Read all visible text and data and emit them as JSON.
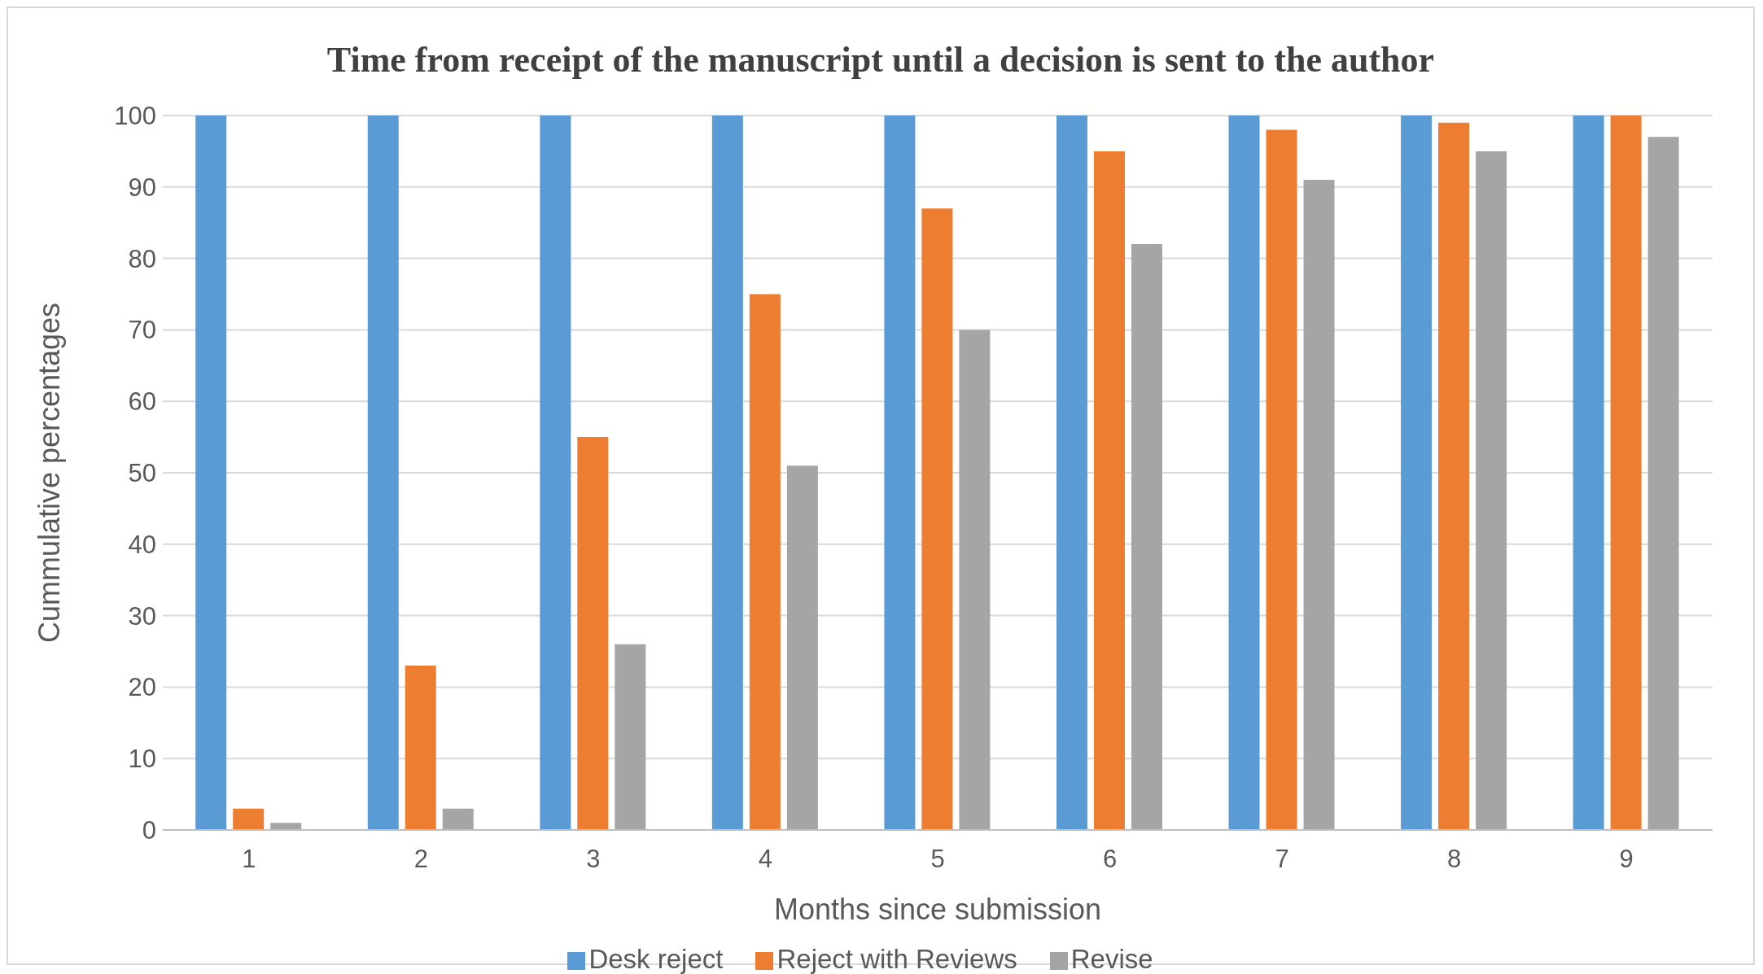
{
  "chart_data": {
    "type": "bar",
    "title": "Time from receipt of the manuscript until a decision is sent to the author",
    "xlabel": "Months since submission",
    "ylabel": "Cummulative percentages",
    "categories": [
      "1",
      "2",
      "3",
      "4",
      "5",
      "6",
      "7",
      "8",
      "9"
    ],
    "series": [
      {
        "name": "Desk reject",
        "color": "#5b9bd5",
        "values": [
          100,
          100,
          100,
          100,
          100,
          100,
          100,
          100,
          100
        ]
      },
      {
        "name": "Reject with Reviews",
        "color": "#ed7d31",
        "values": [
          3,
          23,
          55,
          75,
          87,
          95,
          98,
          99,
          100
        ]
      },
      {
        "name": "Revise",
        "color": "#a5a5a5",
        "values": [
          1,
          3,
          26,
          51,
          70,
          82,
          91,
          95,
          97
        ]
      }
    ],
    "ylim": [
      0,
      100
    ],
    "yticks": [
      0,
      10,
      20,
      30,
      40,
      50,
      60,
      70,
      80,
      90,
      100
    ],
    "grid": "y",
    "legend": "bottom"
  }
}
